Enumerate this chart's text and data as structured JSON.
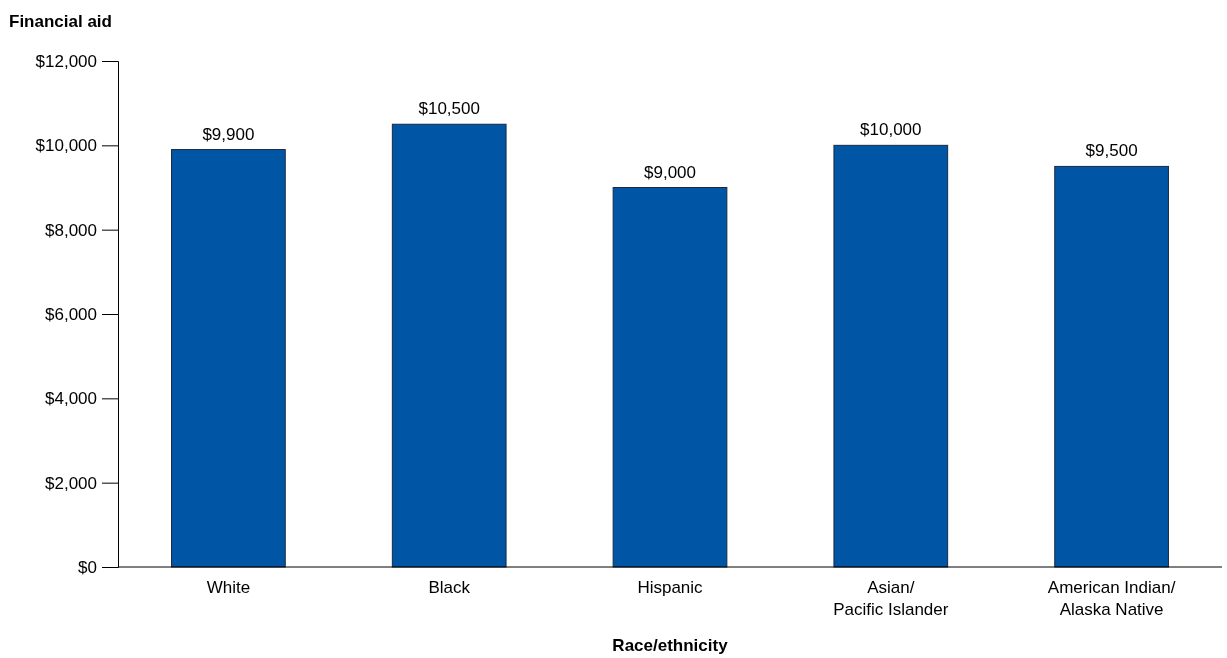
{
  "chart_data": {
    "type": "bar",
    "xlabel": "Race/ethnicity",
    "ylabel": "Financial aid",
    "categories": [
      "White",
      "Black",
      "Hispanic",
      "Asian/Pacific Islander",
      "American Indian/Alaska Native"
    ],
    "values": [
      9900,
      10500,
      9000,
      10000,
      9500
    ],
    "value_labels": [
      "$9,900",
      "$10,500",
      "$9,000",
      "$10,000",
      "$9,500"
    ],
    "color": "#0055a5",
    "ylim": [
      0,
      12000
    ],
    "yticks": [
      {
        "value": 0,
        "label": "$0"
      },
      {
        "value": 2000,
        "label": "$2,000"
      },
      {
        "value": 4000,
        "label": "$4,000"
      },
      {
        "value": 6000,
        "label": "$6,000"
      },
      {
        "value": 8000,
        "label": "$8,000"
      },
      {
        "value": 10000,
        "label": "$10,000"
      },
      {
        "value": 12000,
        "label": "$12,000"
      }
    ],
    "grid": false
  }
}
